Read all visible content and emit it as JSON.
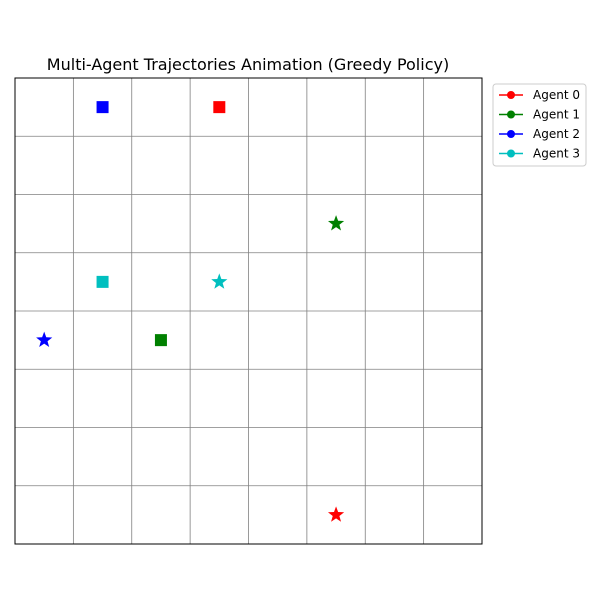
{
  "chart_data": {
    "type": "scatter",
    "title": "Multi-Agent Trajectories Animation (Greedy Policy)",
    "grid": true,
    "grid_size": 8,
    "xlim": [
      0,
      8
    ],
    "ylim": [
      0,
      8
    ],
    "axis_ticks_visible": false,
    "legend_placement": "outside-top-right",
    "series": [
      {
        "name": "Agent 0",
        "color": "#ff0000",
        "position": [
          3.5,
          7.5
        ],
        "goal": [
          5.5,
          0.5
        ]
      },
      {
        "name": "Agent 1",
        "color": "#008000",
        "position": [
          2.5,
          3.5
        ],
        "goal": [
          5.5,
          5.5
        ]
      },
      {
        "name": "Agent 2",
        "color": "#0000ff",
        "position": [
          1.5,
          7.5
        ],
        "goal": [
          0.5,
          3.5
        ]
      },
      {
        "name": "Agent 3",
        "color": "#00bfbf",
        "position": [
          1.5,
          4.5
        ],
        "goal": [
          3.5,
          4.5
        ]
      }
    ],
    "markers": {
      "position": "square",
      "goal": "star",
      "legend": "circle-line"
    }
  }
}
